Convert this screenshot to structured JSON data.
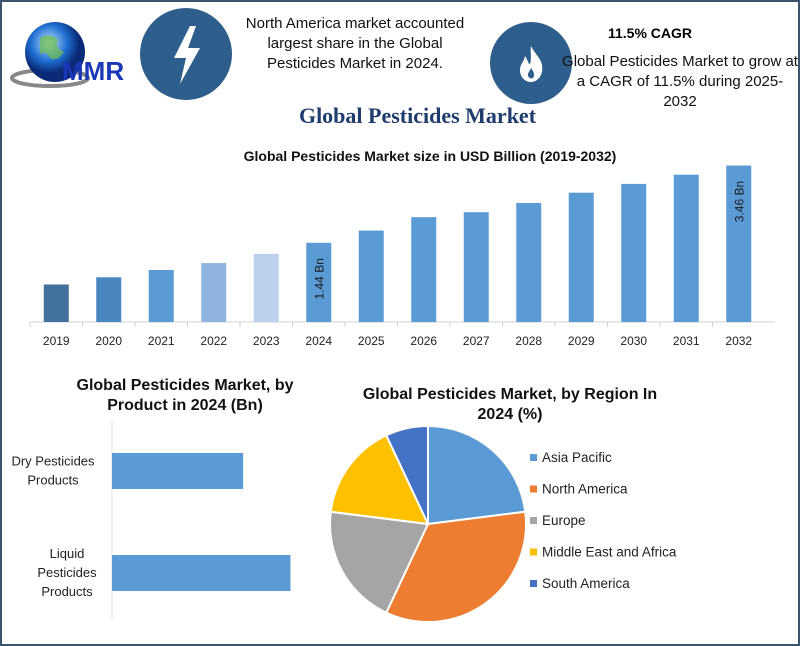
{
  "header": {
    "logo_text": "MMR",
    "icon_left": "lightning-icon",
    "icon_right": "flame-icon",
    "note_left": "North America market accounted largest share in the Global Pesticides Market in 2024.",
    "cagr_title": "11.5% CAGR",
    "note_right": "Global Pesticides Market to grow at a CAGR of 11.5% during 2025-2032",
    "title": "Global Pesticides Market"
  },
  "chart_data": [
    {
      "type": "bar",
      "title": "Global Pesticides Market size in USD Billion (2019-2032)",
      "categories": [
        "2019",
        "2020",
        "2021",
        "2022",
        "2023",
        "2024",
        "2025",
        "2026",
        "2027",
        "2028",
        "2029",
        "2030",
        "2031",
        "2032"
      ],
      "values": [
        0.35,
        0.54,
        0.73,
        0.91,
        1.15,
        1.44,
        1.76,
        2.11,
        2.24,
        2.48,
        2.75,
        2.98,
        3.22,
        3.46
      ],
      "data_labels": {
        "2024": "1.44 Bn",
        "2032": "3.46 Bn"
      },
      "colors": [
        "#41719c",
        "#4a86bf",
        "#5b9bd5",
        "#8fb4de",
        "#bdd1ec",
        "#5b9bd5",
        "#5b9bd5",
        "#5b9bd5",
        "#5b9bd5",
        "#5b9bd5",
        "#5b9bd5",
        "#5b9bd5",
        "#5b9bd5",
        "#5b9bd5"
      ],
      "ylim": [
        -0.63,
        3.5
      ],
      "grid": false
    },
    {
      "type": "bar",
      "orientation": "horizontal",
      "title": "Global Pesticides Market, by Product in 2024 (Bn)",
      "categories": [
        "Dry Pesticides Products",
        "Liquid Pesticides Products"
      ],
      "values": [
        0.61,
        0.83
      ],
      "color": "#5b9bd5",
      "xlim": [
        0,
        1
      ],
      "grid": false
    },
    {
      "type": "pie",
      "title": "Global Pesticides Market, by Region In 2024 (%)",
      "categories": [
        "Asia Pacific",
        "North America",
        "Europe",
        "Middle East and Africa",
        "South America"
      ],
      "values": [
        23,
        34,
        20,
        16,
        7
      ],
      "colors": [
        "#5b9bd5",
        "#ed7d31",
        "#a5a5a5",
        "#ffc000",
        "#4472c4"
      ],
      "legend": "right"
    }
  ]
}
